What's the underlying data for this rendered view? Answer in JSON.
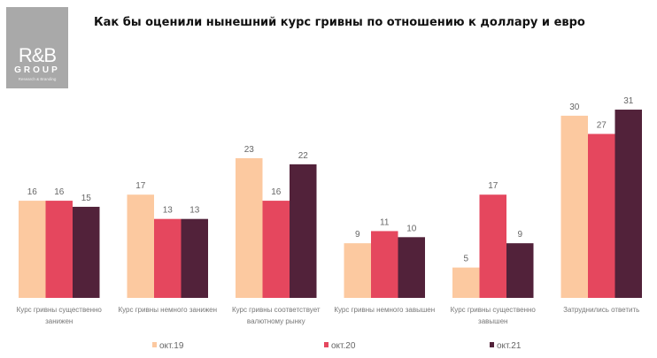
{
  "logo": {
    "brand": "R&B",
    "group": "GROUP",
    "tagline": "Research & Branding"
  },
  "chart_data": {
    "type": "bar",
    "title": "Как бы оценили нынешний курс гривны по отношению к доллару и евро",
    "categories": [
      [
        "Курс гривны существенно",
        "занижен"
      ],
      [
        "Курс гривны немного занижен"
      ],
      [
        "Курс гривны соответствует",
        "валютному рынку"
      ],
      [
        "Курс гривны немного завышен"
      ],
      [
        "Курс гривны существенно",
        "завышен"
      ],
      [
        "Затруднились ответить"
      ]
    ],
    "series": [
      {
        "name": "окт.19",
        "color": "#FCC9A0",
        "values": [
          16,
          17,
          23,
          9,
          5,
          30
        ]
      },
      {
        "name": "окт.20",
        "color": "#E5475E",
        "values": [
          16,
          13,
          16,
          11,
          17,
          27
        ]
      },
      {
        "name": "окт.21",
        "color": "#52223A",
        "values": [
          15,
          13,
          22,
          10,
          9,
          31
        ]
      }
    ],
    "ylim": [
      0,
      32
    ],
    "grid": false,
    "legend": "bottom",
    "data_labels": true
  }
}
